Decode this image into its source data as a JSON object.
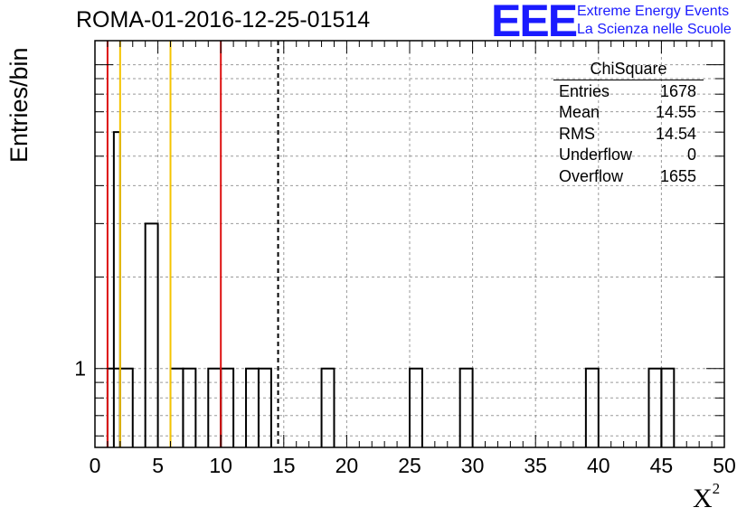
{
  "header": {
    "run_title": "ROMA-01-2016-12-25-01514",
    "logo_text": "EEE",
    "logo_line1": "Extreme Energy Events",
    "logo_line2": "La Scienza nelle Scuole"
  },
  "stats_box": {
    "title": "ChiSquare",
    "rows": [
      {
        "label": "Entries",
        "value": "1678"
      },
      {
        "label": "Mean",
        "value": "14.55"
      },
      {
        "label": "RMS",
        "value": "14.54"
      },
      {
        "label": "Underflow",
        "value": "0"
      },
      {
        "label": "Overflow",
        "value": "1655"
      }
    ]
  },
  "chart_data": {
    "type": "bar",
    "title": "ROMA-01-2016-12-25-01514",
    "xlabel": "X²",
    "ylabel": "Entries/bin",
    "ylog": true,
    "xlim": [
      0,
      50
    ],
    "ylim": [
      0.55,
      12
    ],
    "grid": true,
    "bin_width": 1,
    "bins": [
      {
        "x0": 1,
        "value": 1
      },
      {
        "x0": 2,
        "value": 1
      },
      {
        "x0": 4,
        "value": 3
      },
      {
        "x0": 6,
        "value": 1
      },
      {
        "x0": 7,
        "value": 1
      },
      {
        "x0": 9,
        "value": 1
      },
      {
        "x0": 10,
        "value": 1
      },
      {
        "x0": 12,
        "value": 1
      },
      {
        "x0": 13,
        "value": 1
      },
      {
        "x0": 18,
        "value": 1
      },
      {
        "x0": 25,
        "value": 1
      },
      {
        "x0": 29,
        "value": 1
      },
      {
        "x0": 39,
        "value": 1
      },
      {
        "x0": 44,
        "value": 1
      },
      {
        "x0": 45,
        "value": 1
      }
    ],
    "extra_bins": [
      {
        "x0": 1.5,
        "x1": 2,
        "value": 6
      }
    ],
    "x_ticks": [
      0,
      5,
      10,
      15,
      20,
      25,
      30,
      35,
      40,
      45,
      50
    ],
    "y_tick_labels": [
      {
        "value": 1,
        "label": "1"
      }
    ],
    "vertical_lines": [
      {
        "x": 1,
        "color": "#dd1111",
        "style": "solid"
      },
      {
        "x": 2,
        "color": "#f5c400",
        "style": "solid"
      },
      {
        "x": 6,
        "color": "#f5c400",
        "style": "solid"
      },
      {
        "x": 10,
        "color": "#dd1111",
        "style": "solid"
      },
      {
        "x": 14.55,
        "color": "#000000",
        "style": "dashed"
      }
    ]
  }
}
